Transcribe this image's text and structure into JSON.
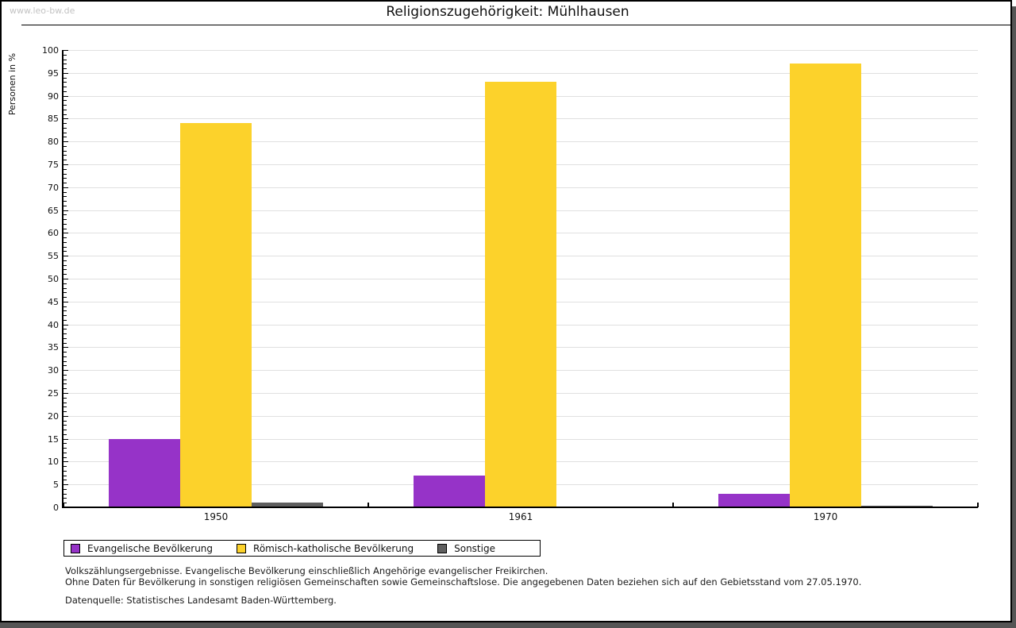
{
  "watermark": "www.leo-bw.de",
  "header": {
    "title": "Religionszugehörigkeit: Mühlhausen"
  },
  "chart_data": {
    "type": "bar",
    "title": "Religionszugehörigkeit: Mühlhausen",
    "ylabel": "Personen in %",
    "xlabel": "",
    "categories": [
      "1950",
      "1961",
      "1970"
    ],
    "series": [
      {
        "name": "Evangelische Bevölkerung",
        "color": "#9633C8",
        "values": [
          15,
          7,
          3
        ]
      },
      {
        "name": "Römisch-katholische Bevölkerung",
        "color": "#FCD22B",
        "values": [
          84,
          93,
          97
        ]
      },
      {
        "name": "Sonstige",
        "color": "#5F5F5F",
        "values": [
          1,
          0,
          0.4
        ]
      }
    ],
    "ylim": [
      0,
      100
    ],
    "ytick_major_step": 5,
    "ytick_minor_step": 1,
    "grid": true,
    "gridline_color": "#e0e0e0",
    "legend_position": "bottom-left"
  },
  "footnotes": {
    "line1": "Volkszählungsergebnisse. Evangelische Bevölkerung einschließlich Angehörige evangelischer Freikirchen.",
    "line2": "Ohne Daten für Bevölkerung in sonstigen religiösen Gemeinschaften sowie Gemeinschaftslose. Die angegebenen Daten beziehen sich auf den Gebietsstand vom 27.05.1970.",
    "source": "Datenquelle: Statistisches Landesamt Baden-Württemberg."
  }
}
